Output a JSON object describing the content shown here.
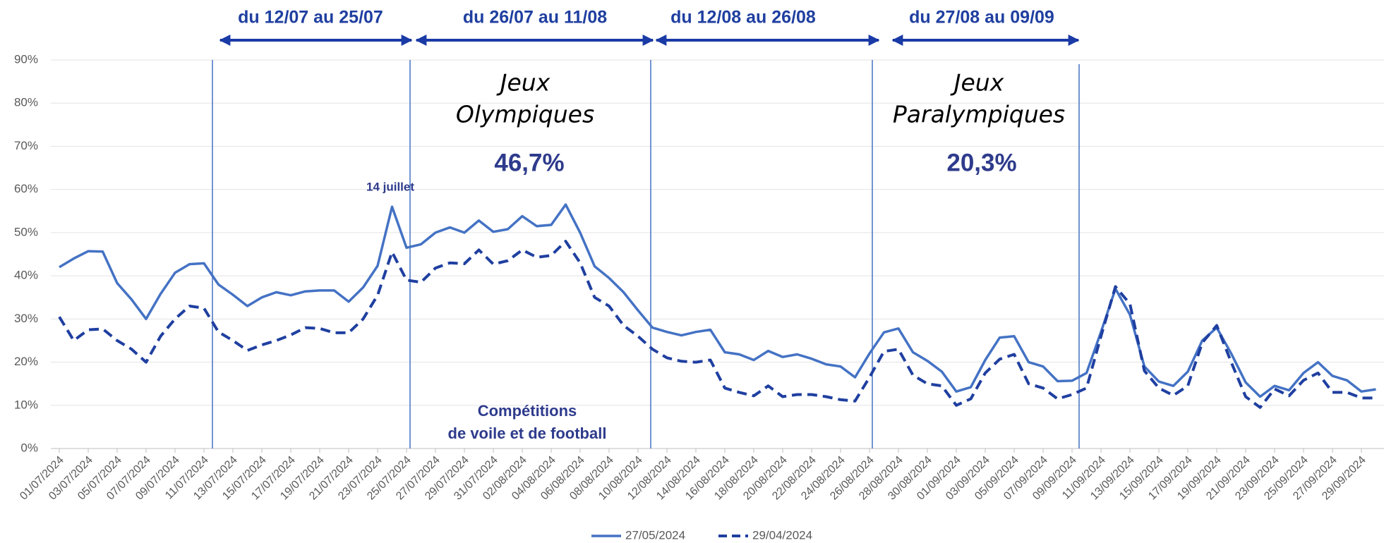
{
  "chart_data": {
    "type": "line",
    "categories": [
      "01/07/2024",
      null,
      "03/07/2024",
      null,
      "05/07/2024",
      null,
      "07/07/2024",
      null,
      "09/07/2024",
      null,
      "11/07/2024",
      null,
      "13/07/2024",
      null,
      "15/07/2024",
      null,
      "17/07/2024",
      null,
      "19/07/2024",
      null,
      "21/07/2024",
      null,
      "23/07/2024",
      null,
      "25/07/2024",
      null,
      "27/07/2024",
      null,
      "29/07/2024",
      null,
      "31/07/2024",
      null,
      "02/08/2024",
      null,
      "04/08/2024",
      null,
      "06/08/2024",
      null,
      "08/08/2024",
      null,
      "10/08/2024",
      null,
      "12/08/2024",
      null,
      "14/08/2024",
      null,
      "16/08/2024",
      null,
      "18/08/2024",
      null,
      "20/08/2024",
      null,
      "22/08/2024",
      null,
      "24/08/2024",
      null,
      "26/08/2024",
      null,
      "28/08/2024",
      null,
      "30/08/2024",
      null,
      "01/09/2024",
      null,
      "03/09/2024",
      null,
      "05/09/2024",
      null,
      "07/09/2024",
      null,
      "09/09/2024",
      null,
      "11/09/2024",
      null,
      "13/09/2024",
      null,
      "15/09/2024",
      null,
      "17/09/2024",
      null,
      "19/09/2024",
      null,
      "21/09/2024",
      null,
      "23/09/2024",
      null,
      "25/09/2024",
      null,
      "27/09/2024",
      null,
      "29/09/2024",
      null
    ],
    "series": [
      {
        "name": "27/05/2024",
        "color": "#4472c4",
        "dash": false,
        "values": [
          42,
          44,
          45.7,
          45.6,
          38.3,
          34.5,
          30,
          35.8,
          40.7,
          42.7,
          42.9,
          38,
          35.6,
          33,
          35,
          36.2,
          35.5,
          36.4,
          36.6,
          36.6,
          34,
          37.3,
          42.3,
          56,
          46.5,
          47.3,
          50,
          51.2,
          50,
          52.8,
          50.2,
          50.8,
          53.8,
          51.5,
          51.8,
          56.5,
          50,
          42.2,
          39.5,
          36.2,
          32,
          28,
          27,
          26.2,
          27,
          27.5,
          22.3,
          21.8,
          20.5,
          22.6,
          21.2,
          21.8,
          20.8,
          19.5,
          19,
          16.5,
          22,
          26.9,
          27.8,
          22.3,
          20.3,
          17.8,
          13.2,
          14.2,
          20.5,
          25.7,
          26,
          20,
          19,
          15.6,
          15.7,
          17.5,
          27,
          37,
          31,
          19,
          15.5,
          14.5,
          17.8,
          25,
          28,
          22,
          15.3,
          12,
          14.5,
          13.5,
          17.5,
          20,
          16.8,
          15.8,
          13.2,
          13.7
        ]
      },
      {
        "name": "29/04/2024",
        "color": "#1f3fa0",
        "dash": true,
        "values": [
          30.5,
          25,
          27.5,
          27.7,
          25,
          23,
          20,
          26,
          30,
          33,
          32.5,
          27,
          25,
          22.7,
          24,
          25,
          26.3,
          28,
          27.8,
          26.8,
          26.8,
          30,
          35.5,
          45.5,
          39,
          38.5,
          41.8,
          43,
          42.8,
          46,
          42.7,
          43.5,
          46,
          44.3,
          44.7,
          48,
          43,
          35,
          33,
          28.5,
          26,
          23,
          21,
          20.2,
          20,
          20.5,
          14,
          13,
          12.2,
          14.5,
          12,
          12.5,
          12.5,
          12,
          11.3,
          11,
          16.5,
          22.5,
          23,
          17,
          15,
          14.5,
          10,
          11.5,
          17.5,
          20.7,
          21.8,
          15,
          14,
          11.5,
          12.5,
          14,
          26,
          37.5,
          33.5,
          18,
          14,
          12.3,
          14.5,
          24.5,
          28.5,
          20,
          12,
          9.5,
          13.8,
          12.2,
          15.8,
          17.5,
          13,
          13,
          11.7,
          11.7
        ]
      }
    ],
    "ylim": [
      0,
      90
    ],
    "yticks": [
      {
        "value": 0,
        "label": "0%"
      },
      {
        "value": 10,
        "label": "10%"
      },
      {
        "value": 20,
        "label": "20%"
      },
      {
        "value": 30,
        "label": "30%"
      },
      {
        "value": 40,
        "label": "40%"
      },
      {
        "value": 50,
        "label": "50%"
      },
      {
        "value": 60,
        "label": "60%"
      },
      {
        "value": 70,
        "label": "70%"
      },
      {
        "value": 80,
        "label": "80%"
      },
      {
        "value": 90,
        "label": "90%"
      }
    ],
    "grid": true,
    "legend": "bottom",
    "annotations": {
      "periods": [
        "du 12/07 au 25/07",
        "du 26/07 au 11/08",
        "du 12/08 au 26/08",
        "du 27/08 au 09/09"
      ],
      "games": [
        {
          "title": [
            "Jeux",
            "Olympiques"
          ],
          "value_label": "46,7%"
        },
        {
          "title": [
            "Jeux",
            "Paralympiques"
          ],
          "value_label": "20,3%"
        }
      ],
      "peak_note": "14 juillet",
      "sailing": [
        "Compétitions",
        "de voile et de football"
      ]
    }
  }
}
